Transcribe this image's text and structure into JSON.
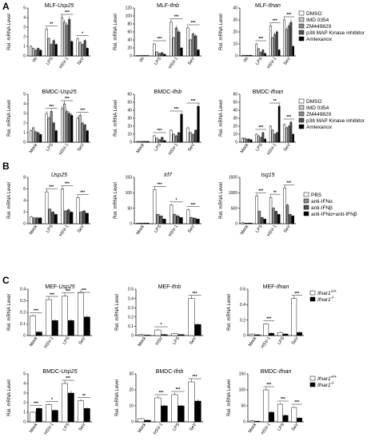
{
  "colors": {
    "white": "#ffffff",
    "lightgray": "#c8c8c8",
    "gray": "#8a8a8a",
    "darkgray": "#505050",
    "black": "#000000"
  },
  "legends": {
    "A": [
      "DMSO",
      "IMD 0354",
      "ZM449829",
      "p38 MAP Kinase inhibitor",
      "Amlexanox"
    ],
    "B": [
      "PBS",
      "anti-IFNα",
      "anti-IFNβ",
      "anti-IFNα+anti-IFNβ"
    ],
    "C": [
      "Ifnar1+/+",
      "Ifnar1-/-"
    ]
  },
  "chart_data": [
    {
      "id": "A1",
      "panel": "A",
      "type": "bar",
      "title_prefix": "MLF-",
      "title_gene": "Usp25",
      "ylabel": "Rel. mRNA Level",
      "categories": [
        "0h",
        "LPS",
        "HSV-1",
        "SeV"
      ],
      "ylim": [
        0,
        5
      ],
      "yticks": [
        0,
        1,
        2,
        3,
        4,
        5
      ],
      "values": [
        [
          1,
          0.8,
          0.6,
          0.8,
          0.6
        ],
        [
          2.8,
          1.8,
          1.2,
          1.6,
          1.2
        ],
        [
          4,
          3.5,
          3.2,
          3.8,
          1.5
        ],
        [
          1.8,
          1.4,
          1.2,
          1.6,
          0.8
        ]
      ],
      "sig": [
        [
          "",
          "LPS",
          "**"
        ],
        [
          "",
          "HSV-1",
          "***"
        ],
        [
          "",
          "SeV",
          "*"
        ]
      ]
    },
    {
      "id": "A2",
      "panel": "A",
      "type": "bar",
      "title_prefix": "MLF-",
      "title_gene": "Ifnb",
      "ylabel": "Rel. mRNA Level",
      "categories": [
        "0h",
        "LPS",
        "HSV-1",
        "SeV"
      ],
      "ylim": [
        0,
        120
      ],
      "yticks": [
        0,
        20,
        40,
        60,
        80,
        100,
        120
      ],
      "values": [
        [
          1,
          1,
          1,
          1,
          1
        ],
        [
          30,
          10,
          6,
          8,
          4
        ],
        [
          85,
          45,
          70,
          60,
          20
        ],
        [
          70,
          40,
          55,
          50,
          15
        ]
      ],
      "sig": [
        [
          "",
          "LPS",
          "***"
        ],
        [
          "",
          "HSV-1",
          "***"
        ],
        [
          "",
          "SeV",
          "***"
        ]
      ]
    },
    {
      "id": "A3",
      "panel": "A",
      "type": "bar",
      "title_prefix": "MLF-",
      "title_gene": "Ifnan",
      "ylabel": "Rel. mRNA Level",
      "categories": [
        "0h",
        "LPS",
        "HSV-1",
        "SeV"
      ],
      "ylim": [
        0,
        40
      ],
      "yticks": [
        0,
        10,
        20,
        30,
        40
      ],
      "values": [
        [
          0.5,
          0.5,
          0.5,
          0.5,
          0.5
        ],
        [
          10,
          6,
          3,
          5,
          2
        ],
        [
          25,
          15,
          18,
          20,
          5
        ],
        [
          30,
          22,
          25,
          28,
          8
        ]
      ],
      "sig": [
        [
          "",
          "LPS",
          "***"
        ],
        [
          "",
          "HSV-1",
          "***"
        ],
        [
          "",
          "SeV",
          "***"
        ]
      ]
    },
    {
      "id": "A4",
      "panel": "A",
      "type": "bar",
      "title_prefix": "BMDC-",
      "title_gene": "Usp25",
      "ylabel": "Rel. mRNA Level",
      "categories": [
        "Mock",
        "LPS",
        "HSV-1",
        "SeV"
      ],
      "ylim": [
        0,
        5
      ],
      "yticks": [
        0,
        1,
        2,
        3,
        4,
        5
      ],
      "values": [
        [
          1.2,
          1.5,
          1.1,
          1,
          0.8
        ],
        [
          3,
          2.5,
          3.2,
          2,
          1.2
        ],
        [
          3.5,
          4,
          3.2,
          3,
          2.8
        ],
        [
          2.5,
          2.8,
          2,
          1.8,
          1.2
        ]
      ],
      "sig": [
        [
          "",
          "LPS",
          "***"
        ],
        [
          "",
          "HSV-1",
          "***"
        ],
        [
          "",
          "SeV",
          "***"
        ]
      ]
    },
    {
      "id": "A5",
      "panel": "A",
      "type": "bar",
      "title_prefix": "BMDC-",
      "title_gene": "Ifnb",
      "ylabel": "Rel. mRNA Level",
      "categories": [
        "Mock",
        "LPS",
        "HSV-1",
        "SeV"
      ],
      "ylim": [
        0,
        60
      ],
      "yticks": [
        0,
        10,
        20,
        30,
        40,
        50,
        60
      ],
      "values": [
        [
          1,
          1,
          1,
          1,
          1
        ],
        [
          8,
          5,
          3,
          6,
          2
        ],
        [
          15,
          10,
          8,
          12,
          35
        ],
        [
          18,
          12,
          10,
          15,
          45
        ]
      ],
      "sig": [
        [
          "",
          "LPS",
          "***"
        ],
        [
          "",
          "HSV-1",
          "***"
        ],
        [
          "",
          "SeV",
          "***"
        ]
      ]
    },
    {
      "id": "A6",
      "panel": "A",
      "type": "bar",
      "title_prefix": "BMDC-",
      "title_gene": "Ifnan",
      "ylabel": "Rel. mRNA Level",
      "categories": [
        "Mock",
        "LPS",
        "HSV-1",
        "SeV"
      ],
      "ylim": [
        0,
        60
      ],
      "yticks": [
        0,
        10,
        20,
        30,
        40,
        50,
        60
      ],
      "values": [
        [
          5,
          5,
          4,
          4,
          3
        ],
        [
          10,
          8,
          6,
          12,
          4
        ],
        [
          20,
          15,
          10,
          12,
          45
        ],
        [
          22,
          18,
          20,
          25,
          10
        ]
      ],
      "sig": [
        [
          "",
          "LPS",
          "***"
        ],
        [
          "",
          "HSV-1",
          "**"
        ],
        [
          "",
          "SeV",
          "***"
        ]
      ]
    },
    {
      "id": "B1",
      "panel": "B",
      "type": "bar",
      "title_prefix": "",
      "title_gene": "Usp25",
      "ylabel": "Rel. mRNA Level",
      "categories": [
        "Mock",
        "LPS",
        "HSV-1",
        "SeV"
      ],
      "ylim": [
        0,
        8
      ],
      "yticks": [
        0,
        2,
        4,
        6,
        8
      ],
      "values": [
        [
          1.2,
          1,
          1,
          1
        ],
        [
          5.5,
          2.5,
          2,
          1.6
        ],
        [
          6,
          2.2,
          2.4,
          2
        ],
        [
          4.5,
          2,
          2.2,
          1.8
        ]
      ],
      "sig": [
        [
          "",
          "LPS",
          "***"
        ],
        [
          "",
          "HSV-1",
          "***"
        ],
        [
          "",
          "SeV",
          "***"
        ]
      ]
    },
    {
      "id": "B2",
      "panel": "B",
      "type": "bar",
      "title_prefix": "",
      "title_gene": "Irf7",
      "ylabel": "Rel. mRNA Level",
      "categories": [
        "Mock",
        "LPS",
        "HSV-1",
        "SeV"
      ],
      "ylim": [
        0,
        150
      ],
      "yticks": [
        0,
        50,
        100,
        150
      ],
      "values": [
        [
          2,
          2,
          2,
          2
        ],
        [
          110,
          30,
          25,
          15
        ],
        [
          60,
          30,
          25,
          20
        ],
        [
          45,
          20,
          18,
          15
        ]
      ],
      "sig": [
        [
          "",
          "LPS",
          "***"
        ],
        [
          "",
          "HSV-1",
          "*"
        ],
        [
          "",
          "SeV",
          "***"
        ]
      ]
    },
    {
      "id": "B3",
      "panel": "B",
      "type": "bar",
      "title_prefix": "",
      "title_gene": "Isg15",
      "ylabel": "Rel. mRNA Level",
      "categories": [
        "Mock",
        "LPS",
        "HSV-1",
        "SeV"
      ],
      "ylim": [
        0,
        1500
      ],
      "yticks": [
        0,
        500,
        1000,
        1500
      ],
      "values": [
        [
          30,
          20,
          20,
          20
        ],
        [
          900,
          400,
          200,
          150
        ],
        [
          850,
          500,
          400,
          300
        ],
        [
          1150,
          600,
          300,
          250
        ]
      ],
      "sig": [
        [
          "",
          "LPS",
          "***"
        ],
        [
          "",
          "HSV-1",
          "**"
        ],
        [
          "",
          "SeV",
          "***"
        ]
      ]
    },
    {
      "id": "C1",
      "panel": "C",
      "type": "bar",
      "title_prefix": "MEF-",
      "title_gene": "Usp25",
      "ylabel": "Rel. mRNA Level",
      "categories": [
        "Mock",
        "HSV-1",
        "LPS",
        "SeV"
      ],
      "ylim": [
        0,
        0.4
      ],
      "yticks": [
        0,
        0.1,
        0.2,
        0.3,
        0.4
      ],
      "values": [
        [
          0.17,
          0.03
        ],
        [
          0.31,
          0.13
        ],
        [
          0.34,
          0.13
        ],
        [
          0.37,
          0.16
        ]
      ],
      "sig": [
        [
          "",
          "Mock",
          "***"
        ],
        [
          "",
          "HSV-1",
          "***"
        ],
        [
          "",
          "LPS",
          "***"
        ],
        [
          "",
          "SeV",
          "***"
        ]
      ]
    },
    {
      "id": "C2",
      "panel": "C",
      "type": "bar",
      "title_prefix": "MEF-",
      "title_gene": "Ifnb",
      "ylabel": "Rel. mRNA Level",
      "categories": [
        "Mock",
        "HSV",
        "LPS",
        "SeV"
      ],
      "ylim": [
        0,
        0.5
      ],
      "yticks": [
        0,
        0.1,
        0.2,
        0.3,
        0.4,
        0.5
      ],
      "values": [
        [
          0.01,
          0.005
        ],
        [
          0.06,
          0.01
        ],
        [
          0.02,
          0.01
        ],
        [
          0.4,
          0.12
        ]
      ],
      "sig": [
        [
          "",
          "HSV",
          "*"
        ],
        [
          "",
          "SeV",
          "***"
        ]
      ]
    },
    {
      "id": "C3",
      "panel": "C",
      "type": "bar",
      "title_prefix": "MEF-",
      "title_gene": "Ifnan",
      "ylabel": "Rel. mRNA Level",
      "categories": [
        "Mock",
        "HSV-1",
        "LPS",
        "SeV"
      ],
      "ylim": [
        0,
        0.6
      ],
      "yticks": [
        0,
        0.2,
        0.4,
        0.6
      ],
      "values": [
        [
          0.02,
          0.01
        ],
        [
          0.15,
          0.03
        ],
        [
          0.04,
          0.02
        ],
        [
          0.48,
          0.04
        ]
      ],
      "sig": [
        [
          "",
          "HSV-1",
          "***"
        ],
        [
          "",
          "SeV",
          "***"
        ]
      ]
    },
    {
      "id": "C4",
      "panel": "C",
      "type": "bar",
      "title_prefix": "BMDC-",
      "title_gene": "Usp25",
      "ylabel": "Rel. mRNA Level",
      "categories": [
        "Mock",
        "HSV-1",
        "LPS",
        "SeV"
      ],
      "ylim": [
        0,
        5
      ],
      "yticks": [
        0,
        1,
        2,
        3,
        4,
        5
      ],
      "values": [
        [
          1,
          1.4
        ],
        [
          1.8,
          1.2
        ],
        [
          4,
          3
        ],
        [
          2.2,
          1.4
        ]
      ],
      "sig": [
        [
          "",
          "Mock",
          "***"
        ],
        [
          "",
          "HSV-1",
          "*"
        ],
        [
          "",
          "LPS",
          "***"
        ],
        [
          "",
          "SeV",
          "**"
        ]
      ]
    },
    {
      "id": "C5",
      "panel": "C",
      "type": "bar",
      "title_prefix": "BMDC-",
      "title_gene": "Ifnb",
      "ylabel": "Rel. mRNA Level",
      "categories": [
        "Mock",
        "HSV-1",
        "LPS",
        "SeV"
      ],
      "ylim": [
        0,
        30
      ],
      "yticks": [
        0,
        10,
        20,
        30
      ],
      "values": [
        [
          2,
          1
        ],
        [
          15,
          10
        ],
        [
          17,
          10
        ],
        [
          25,
          13
        ]
      ],
      "sig": [
        [
          "",
          "HSV-1",
          "***"
        ],
        [
          "",
          "LPS",
          "***"
        ],
        [
          "",
          "SeV",
          "***"
        ]
      ]
    },
    {
      "id": "C6",
      "panel": "C",
      "type": "bar",
      "title_prefix": "BMDC-",
      "title_gene": "Ifnan",
      "ylabel": "Rel. mRNA Level",
      "categories": [
        "Mock",
        "HSV-1",
        "LPS",
        "SeV"
      ],
      "ylim": [
        0,
        150
      ],
      "yticks": [
        0,
        50,
        100,
        150
      ],
      "values": [
        [
          3,
          2
        ],
        [
          100,
          30
        ],
        [
          55,
          20
        ],
        [
          45,
          12
        ]
      ],
      "sig": [
        [
          "",
          "HSV-1",
          "***"
        ],
        [
          "",
          "LPS",
          "***"
        ],
        [
          "",
          "SeV",
          "***"
        ]
      ]
    }
  ]
}
